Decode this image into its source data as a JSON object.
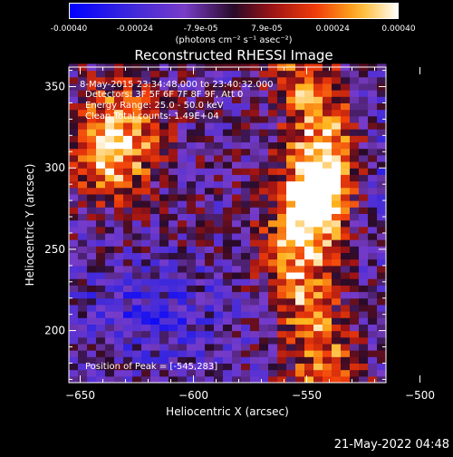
{
  "colorbar": {
    "ticks": [
      "-0.00040",
      "-0.00024",
      "-7.9e-05",
      "7.9e-05",
      "0.00024",
      "0.00040"
    ],
    "units": "(photons cm⁻² s⁻¹ asec⁻²)"
  },
  "chart_data": {
    "type": "heatmap",
    "title": "Reconstructed RHESSI Image",
    "xlabel": "Heliocentric X (arcsec)",
    "ylabel": "Heliocentric Y (arcsec)",
    "xlim": [
      -655,
      -515
    ],
    "ylim": [
      168,
      362
    ],
    "x_ticks": [
      -650,
      -600,
      -550,
      -500
    ],
    "y_ticks": [
      200,
      250,
      300,
      350
    ],
    "color_range": [
      -0.0004,
      0.0004
    ],
    "colormap": "blue-purple-red-orange-yellow-white",
    "bright_sources": [
      {
        "x": -545,
        "y": 283,
        "level": 1.0
      },
      {
        "x": -640,
        "y": 310,
        "level": 0.8
      }
    ],
    "peak": [
      -545,
      283
    ],
    "annotations": {
      "line1": "8-May-2015 23:34:48.000 to 23:40:32.000",
      "line2": "Detectors: 3F 5F 6F 7F 8F 9F, Att 0",
      "line3": "Energy Range: 25.0 - 50.0 keV",
      "line4": "Clean    Total counts: 1.49E+04",
      "peak_text": "Position of Peak = [-545,283]"
    }
  },
  "timestamp": "21-May-2022 04:48"
}
